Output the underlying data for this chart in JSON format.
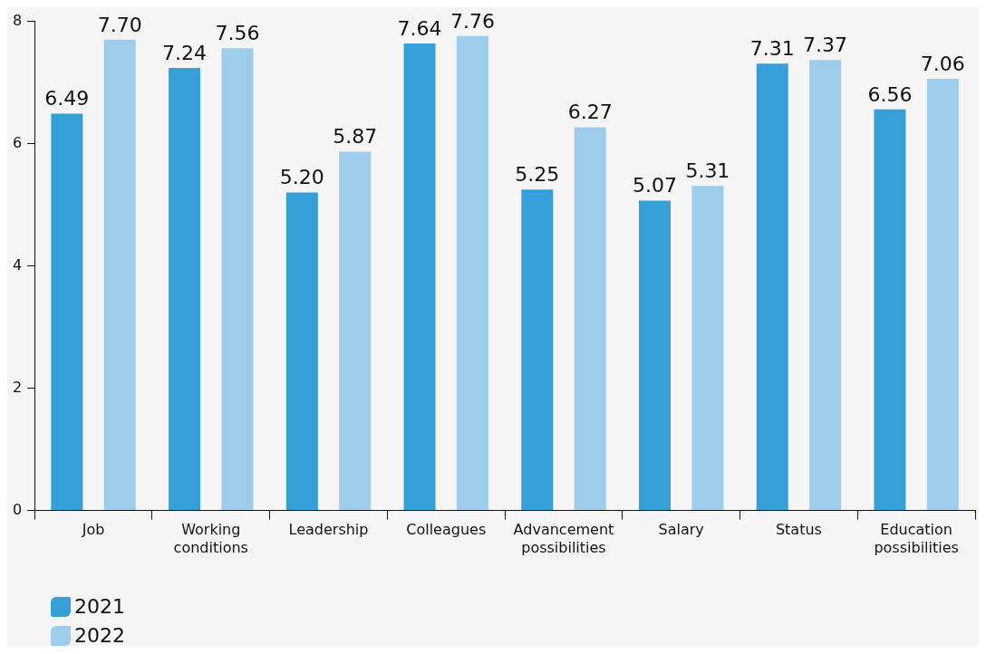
{
  "chart_data": {
    "type": "bar",
    "categories": [
      "Job",
      "Working conditions",
      "Leadership",
      "Colleagues",
      "Advancement possibilities",
      "Salary",
      "Status",
      "Education possibilities"
    ],
    "series": [
      {
        "name": "2021",
        "color": "#379fd8",
        "values": [
          6.49,
          7.24,
          5.2,
          7.64,
          5.25,
          5.07,
          7.31,
          6.56
        ],
        "value_labels": [
          "6.49",
          "7.24",
          "5.20",
          "7.64",
          "5.25",
          "5.07",
          "7.31",
          "6.56"
        ]
      },
      {
        "name": "2022",
        "color": "#9dcdea",
        "values": [
          7.7,
          7.56,
          5.87,
          7.76,
          6.27,
          5.31,
          7.37,
          7.06
        ],
        "value_labels": [
          "7.70",
          "7.56",
          "5.87",
          "7.76",
          "6.27",
          "5.31",
          "7.37",
          "7.06"
        ]
      }
    ],
    "ylim": [
      0,
      8
    ],
    "yticks": [
      0,
      2,
      4,
      6,
      8
    ],
    "grid": false,
    "legend": "bottom left"
  }
}
